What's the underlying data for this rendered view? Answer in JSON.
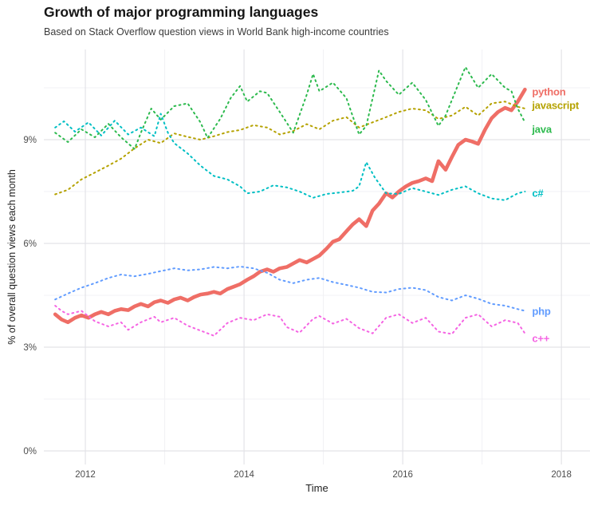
{
  "header": {
    "title": "Growth of major programming languages",
    "subtitle": "Based on Stack Overflow question views in World Bank high-income countries"
  },
  "chart_data": {
    "type": "line",
    "title": "Growth of major programming languages",
    "subtitle": "Based on Stack Overflow question views in World Bank high-income countries",
    "xlabel": "Time",
    "ylabel": "% of overall question views each month",
    "xlim": [
      2011.477,
      2018.36
    ],
    "ylim": [
      -0.392,
      11.608
    ],
    "x_ticks": [
      {
        "v": 2012,
        "label": "2012"
      },
      {
        "v": 2014,
        "label": "2014"
      },
      {
        "v": 2016,
        "label": "2016"
      },
      {
        "v": 2018,
        "label": "2018"
      }
    ],
    "y_ticks": [
      {
        "v": 0,
        "label": "0%"
      },
      {
        "v": 3,
        "label": "3%"
      },
      {
        "v": 6,
        "label": "6%"
      },
      {
        "v": 9,
        "label": "9%"
      }
    ],
    "grid": {
      "major_y": [
        0,
        3,
        6,
        9
      ],
      "minor_y": [
        1.5,
        4.5,
        7.5,
        10.5
      ],
      "major_x": [
        2012,
        2014,
        2016,
        2018
      ],
      "minor_x": [
        2013,
        2015,
        2017
      ],
      "major_color": "#e3e3e8",
      "minor_color": "#f1f1f4"
    },
    "legend_position": "right end-of-line labels",
    "label_x": 2017.63,
    "series": [
      {
        "name": "python",
        "color": "#ef6e66",
        "style": "solid",
        "width": 4.6,
        "label_y": 10.38,
        "points": [
          [
            2011.62,
            3.95
          ],
          [
            2011.7,
            3.8
          ],
          [
            2011.78,
            3.72
          ],
          [
            2011.87,
            3.85
          ],
          [
            2011.95,
            3.92
          ],
          [
            2012.04,
            3.85
          ],
          [
            2012.12,
            3.95
          ],
          [
            2012.2,
            4.02
          ],
          [
            2012.29,
            3.95
          ],
          [
            2012.37,
            4.05
          ],
          [
            2012.45,
            4.1
          ],
          [
            2012.54,
            4.07
          ],
          [
            2012.62,
            4.18
          ],
          [
            2012.7,
            4.25
          ],
          [
            2012.79,
            4.18
          ],
          [
            2012.87,
            4.3
          ],
          [
            2012.95,
            4.35
          ],
          [
            2013.04,
            4.28
          ],
          [
            2013.12,
            4.38
          ],
          [
            2013.2,
            4.43
          ],
          [
            2013.29,
            4.35
          ],
          [
            2013.37,
            4.45
          ],
          [
            2013.45,
            4.52
          ],
          [
            2013.54,
            4.55
          ],
          [
            2013.62,
            4.6
          ],
          [
            2013.7,
            4.55
          ],
          [
            2013.79,
            4.68
          ],
          [
            2013.87,
            4.75
          ],
          [
            2013.95,
            4.82
          ],
          [
            2014.04,
            4.95
          ],
          [
            2014.12,
            5.05
          ],
          [
            2014.2,
            5.18
          ],
          [
            2014.29,
            5.25
          ],
          [
            2014.37,
            5.18
          ],
          [
            2014.45,
            5.28
          ],
          [
            2014.54,
            5.32
          ],
          [
            2014.62,
            5.42
          ],
          [
            2014.7,
            5.52
          ],
          [
            2014.79,
            5.45
          ],
          [
            2014.87,
            5.55
          ],
          [
            2014.95,
            5.65
          ],
          [
            2015.04,
            5.85
          ],
          [
            2015.12,
            6.05
          ],
          [
            2015.2,
            6.12
          ],
          [
            2015.29,
            6.35
          ],
          [
            2015.37,
            6.55
          ],
          [
            2015.45,
            6.7
          ],
          [
            2015.54,
            6.5
          ],
          [
            2015.62,
            6.95
          ],
          [
            2015.7,
            7.15
          ],
          [
            2015.79,
            7.45
          ],
          [
            2015.87,
            7.33
          ],
          [
            2015.95,
            7.5
          ],
          [
            2016.04,
            7.65
          ],
          [
            2016.12,
            7.75
          ],
          [
            2016.2,
            7.8
          ],
          [
            2016.29,
            7.88
          ],
          [
            2016.37,
            7.8
          ],
          [
            2016.45,
            8.38
          ],
          [
            2016.54,
            8.13
          ],
          [
            2016.62,
            8.5
          ],
          [
            2016.7,
            8.85
          ],
          [
            2016.79,
            9.0
          ],
          [
            2016.87,
            8.95
          ],
          [
            2016.95,
            8.88
          ],
          [
            2017.04,
            9.3
          ],
          [
            2017.12,
            9.62
          ],
          [
            2017.2,
            9.8
          ],
          [
            2017.29,
            9.92
          ],
          [
            2017.37,
            9.85
          ],
          [
            2017.45,
            10.1
          ],
          [
            2017.54,
            10.45
          ]
        ]
      },
      {
        "name": "javascript",
        "color": "#b5a200",
        "style": "dotted",
        "width": 2,
        "label_y": 9.99,
        "points": [
          [
            2011.62,
            7.42
          ],
          [
            2011.78,
            7.55
          ],
          [
            2011.95,
            7.85
          ],
          [
            2012.12,
            8.05
          ],
          [
            2012.29,
            8.25
          ],
          [
            2012.45,
            8.45
          ],
          [
            2012.62,
            8.75
          ],
          [
            2012.79,
            9.0
          ],
          [
            2012.95,
            8.9
          ],
          [
            2013.12,
            9.18
          ],
          [
            2013.29,
            9.08
          ],
          [
            2013.45,
            9.0
          ],
          [
            2013.62,
            9.1
          ],
          [
            2013.79,
            9.22
          ],
          [
            2013.95,
            9.28
          ],
          [
            2014.12,
            9.42
          ],
          [
            2014.29,
            9.35
          ],
          [
            2014.45,
            9.15
          ],
          [
            2014.62,
            9.25
          ],
          [
            2014.79,
            9.45
          ],
          [
            2014.95,
            9.3
          ],
          [
            2015.12,
            9.55
          ],
          [
            2015.29,
            9.65
          ],
          [
            2015.45,
            9.35
          ],
          [
            2015.62,
            9.5
          ],
          [
            2015.79,
            9.65
          ],
          [
            2015.95,
            9.8
          ],
          [
            2016.12,
            9.9
          ],
          [
            2016.29,
            9.85
          ],
          [
            2016.45,
            9.6
          ],
          [
            2016.62,
            9.7
          ],
          [
            2016.79,
            9.95
          ],
          [
            2016.95,
            9.7
          ],
          [
            2017.12,
            10.05
          ],
          [
            2017.29,
            10.1
          ],
          [
            2017.45,
            9.95
          ],
          [
            2017.54,
            9.9
          ]
        ]
      },
      {
        "name": "java",
        "color": "#2dba4e",
        "style": "dotted",
        "width": 2,
        "label_y": 9.3,
        "points": [
          [
            2011.62,
            9.2
          ],
          [
            2011.78,
            8.93
          ],
          [
            2011.95,
            9.3
          ],
          [
            2012.12,
            9.07
          ],
          [
            2012.29,
            9.46
          ],
          [
            2012.45,
            9.07
          ],
          [
            2012.62,
            8.73
          ],
          [
            2012.7,
            9.2
          ],
          [
            2012.83,
            9.9
          ],
          [
            2012.95,
            9.58
          ],
          [
            2013.12,
            9.97
          ],
          [
            2013.29,
            10.05
          ],
          [
            2013.45,
            9.5
          ],
          [
            2013.54,
            9.05
          ],
          [
            2013.7,
            9.6
          ],
          [
            2013.83,
            10.2
          ],
          [
            2013.95,
            10.55
          ],
          [
            2014.04,
            10.1
          ],
          [
            2014.2,
            10.4
          ],
          [
            2014.29,
            10.35
          ],
          [
            2014.45,
            9.8
          ],
          [
            2014.62,
            9.2
          ],
          [
            2014.79,
            10.3
          ],
          [
            2014.87,
            10.9
          ],
          [
            2014.95,
            10.4
          ],
          [
            2015.12,
            10.65
          ],
          [
            2015.29,
            10.2
          ],
          [
            2015.45,
            9.15
          ],
          [
            2015.54,
            9.4
          ],
          [
            2015.7,
            11.0
          ],
          [
            2015.79,
            10.7
          ],
          [
            2015.95,
            10.3
          ],
          [
            2016.12,
            10.65
          ],
          [
            2016.29,
            10.15
          ],
          [
            2016.45,
            9.4
          ],
          [
            2016.54,
            9.7
          ],
          [
            2016.7,
            10.6
          ],
          [
            2016.79,
            11.1
          ],
          [
            2016.95,
            10.5
          ],
          [
            2017.12,
            10.9
          ],
          [
            2017.29,
            10.5
          ],
          [
            2017.37,
            10.4
          ],
          [
            2017.45,
            9.9
          ],
          [
            2017.54,
            9.5
          ]
        ]
      },
      {
        "name": "c#",
        "color": "#00bfc4",
        "style": "dotted",
        "width": 2,
        "label_y": 7.45,
        "points": [
          [
            2011.62,
            9.35
          ],
          [
            2011.73,
            9.53
          ],
          [
            2011.87,
            9.23
          ],
          [
            2012.04,
            9.5
          ],
          [
            2012.2,
            9.12
          ],
          [
            2012.37,
            9.55
          ],
          [
            2012.54,
            9.15
          ],
          [
            2012.7,
            9.35
          ],
          [
            2012.87,
            9.1
          ],
          [
            2012.95,
            9.75
          ],
          [
            2013.04,
            9.2
          ],
          [
            2013.12,
            8.9
          ],
          [
            2013.29,
            8.6
          ],
          [
            2013.45,
            8.25
          ],
          [
            2013.62,
            7.95
          ],
          [
            2013.79,
            7.85
          ],
          [
            2013.95,
            7.65
          ],
          [
            2014.04,
            7.45
          ],
          [
            2014.2,
            7.5
          ],
          [
            2014.37,
            7.68
          ],
          [
            2014.54,
            7.62
          ],
          [
            2014.7,
            7.5
          ],
          [
            2014.87,
            7.32
          ],
          [
            2015.04,
            7.43
          ],
          [
            2015.2,
            7.47
          ],
          [
            2015.37,
            7.52
          ],
          [
            2015.45,
            7.65
          ],
          [
            2015.54,
            8.35
          ],
          [
            2015.65,
            7.9
          ],
          [
            2015.79,
            7.45
          ],
          [
            2015.95,
            7.43
          ],
          [
            2016.12,
            7.6
          ],
          [
            2016.29,
            7.5
          ],
          [
            2016.45,
            7.4
          ],
          [
            2016.62,
            7.55
          ],
          [
            2016.79,
            7.65
          ],
          [
            2016.95,
            7.45
          ],
          [
            2017.12,
            7.3
          ],
          [
            2017.29,
            7.25
          ],
          [
            2017.45,
            7.45
          ],
          [
            2017.54,
            7.5
          ]
        ]
      },
      {
        "name": "php",
        "color": "#619cff",
        "style": "dotted",
        "width": 2,
        "label_y": 4.04,
        "points": [
          [
            2011.62,
            4.38
          ],
          [
            2011.78,
            4.55
          ],
          [
            2011.95,
            4.72
          ],
          [
            2012.12,
            4.85
          ],
          [
            2012.29,
            5.0
          ],
          [
            2012.45,
            5.1
          ],
          [
            2012.62,
            5.05
          ],
          [
            2012.79,
            5.12
          ],
          [
            2012.95,
            5.2
          ],
          [
            2013.12,
            5.28
          ],
          [
            2013.29,
            5.22
          ],
          [
            2013.45,
            5.25
          ],
          [
            2013.62,
            5.32
          ],
          [
            2013.79,
            5.28
          ],
          [
            2013.95,
            5.33
          ],
          [
            2014.12,
            5.28
          ],
          [
            2014.29,
            5.15
          ],
          [
            2014.45,
            4.95
          ],
          [
            2014.62,
            4.85
          ],
          [
            2014.79,
            4.95
          ],
          [
            2014.95,
            5.0
          ],
          [
            2015.12,
            4.88
          ],
          [
            2015.29,
            4.8
          ],
          [
            2015.45,
            4.72
          ],
          [
            2015.62,
            4.6
          ],
          [
            2015.79,
            4.58
          ],
          [
            2015.95,
            4.68
          ],
          [
            2016.12,
            4.72
          ],
          [
            2016.29,
            4.65
          ],
          [
            2016.45,
            4.45
          ],
          [
            2016.62,
            4.35
          ],
          [
            2016.79,
            4.5
          ],
          [
            2016.95,
            4.4
          ],
          [
            2017.12,
            4.25
          ],
          [
            2017.29,
            4.2
          ],
          [
            2017.45,
            4.1
          ],
          [
            2017.54,
            4.05
          ]
        ]
      },
      {
        "name": "c++",
        "color": "#f564e3",
        "style": "dotted",
        "width": 2,
        "label_y": 3.25,
        "points": [
          [
            2011.62,
            4.2
          ],
          [
            2011.7,
            4.05
          ],
          [
            2011.78,
            3.95
          ],
          [
            2011.95,
            4.05
          ],
          [
            2012.12,
            3.75
          ],
          [
            2012.29,
            3.6
          ],
          [
            2012.45,
            3.72
          ],
          [
            2012.54,
            3.5
          ],
          [
            2012.7,
            3.72
          ],
          [
            2012.87,
            3.88
          ],
          [
            2012.95,
            3.72
          ],
          [
            2013.12,
            3.85
          ],
          [
            2013.29,
            3.62
          ],
          [
            2013.45,
            3.48
          ],
          [
            2013.62,
            3.33
          ],
          [
            2013.79,
            3.7
          ],
          [
            2013.95,
            3.85
          ],
          [
            2014.12,
            3.78
          ],
          [
            2014.29,
            3.95
          ],
          [
            2014.45,
            3.88
          ],
          [
            2014.54,
            3.58
          ],
          [
            2014.7,
            3.42
          ],
          [
            2014.87,
            3.82
          ],
          [
            2014.95,
            3.9
          ],
          [
            2015.12,
            3.68
          ],
          [
            2015.29,
            3.82
          ],
          [
            2015.45,
            3.55
          ],
          [
            2015.62,
            3.4
          ],
          [
            2015.79,
            3.85
          ],
          [
            2015.95,
            3.95
          ],
          [
            2016.12,
            3.7
          ],
          [
            2016.29,
            3.85
          ],
          [
            2016.45,
            3.45
          ],
          [
            2016.62,
            3.38
          ],
          [
            2016.79,
            3.85
          ],
          [
            2016.95,
            3.95
          ],
          [
            2017.12,
            3.6
          ],
          [
            2017.29,
            3.78
          ],
          [
            2017.45,
            3.7
          ],
          [
            2017.54,
            3.4
          ]
        ]
      }
    ]
  },
  "colors": {
    "background": "#ffffff",
    "title_text": "#161616",
    "subtitle_text": "#3c3c3c",
    "axis_text": "#4d4d4d",
    "grid_major": "#e3e3e8",
    "grid_minor": "#f1f1f4"
  }
}
